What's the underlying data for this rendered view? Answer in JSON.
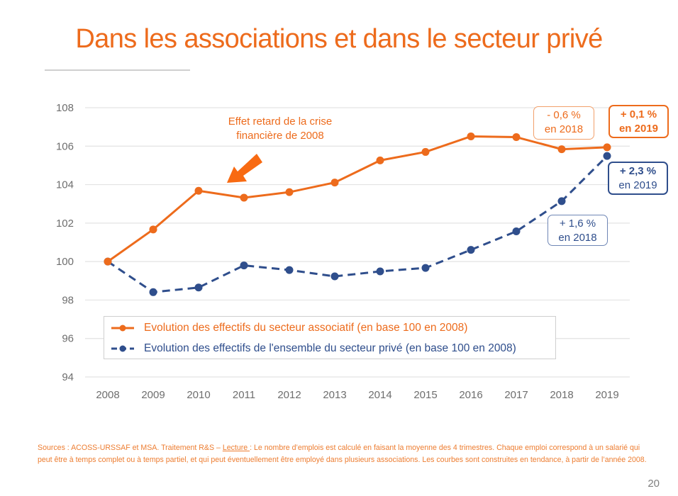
{
  "slide": {
    "title": "Dans les associations et dans le secteur privé",
    "page_number": "20",
    "colors": {
      "accent": "#ED6B1C",
      "series_assoc": "#ED6B1C",
      "series_prive": "#2F4E8C",
      "axis_text": "#6E6E6E",
      "grid": "#E3E3E3"
    }
  },
  "annotation": {
    "line1": "Effet retard de la crise",
    "line2": "financière de 2008",
    "icon": "arrow-down-left-icon"
  },
  "callouts": {
    "assoc_2018": {
      "line1": "- 0,6 %",
      "line2": "en 2018"
    },
    "assoc_2019": {
      "line1": "+ 0,1 %",
      "line2_pre": "en ",
      "line2_year": "2019"
    },
    "prive_2019": {
      "line1": "+ 2,3 %",
      "line2": "en 2019"
    },
    "prive_2018": {
      "line1": "+ 1,6 %",
      "line2": "en 2018"
    }
  },
  "footer": {
    "sources": "Sources : ACOSS-URSSAF et MSA. Traitement R&S – ",
    "lecture_label": "Lecture ",
    "lecture_text": ": Le nombre d’emplois est calculé en faisant la moyenne des 4 trimestres. Chaque emploi correspond à un salarié qui peut être à temps complet ou à temps partiel, et qui peut éventuellement être employé dans plusieurs associations. Les courbes sont construites en tendance, à partir de l’année 2008."
  },
  "chart_data": {
    "type": "line",
    "title": "",
    "xlabel": "",
    "ylabel": "",
    "categories": [
      "2008",
      "2009",
      "2010",
      "2011",
      "2012",
      "2013",
      "2014",
      "2015",
      "2016",
      "2017",
      "2018",
      "2019"
    ],
    "ylim": [
      94,
      108
    ],
    "yticks": [
      94,
      96,
      98,
      100,
      102,
      104,
      106,
      108
    ],
    "grid": true,
    "legend_position": "bottom-left inside plot",
    "series": [
      {
        "name": "Evolution des effectifs du secteur associatif (en base 100 en 2008)",
        "style": "solid",
        "color": "#ED6B1C",
        "values": [
          100,
          101.67,
          103.68,
          103.32,
          103.61,
          104.11,
          105.26,
          105.7,
          106.51,
          106.47,
          105.84,
          105.94
        ]
      },
      {
        "name": "Evolution des effectifs de l'ensemble du secteur privé (en base 100 en 2008)",
        "style": "dashed",
        "color": "#2F4E8C",
        "values": [
          100,
          98.41,
          98.65,
          99.8,
          99.56,
          99.23,
          99.49,
          99.67,
          100.61,
          101.57,
          103.14,
          105.49
        ]
      }
    ]
  }
}
